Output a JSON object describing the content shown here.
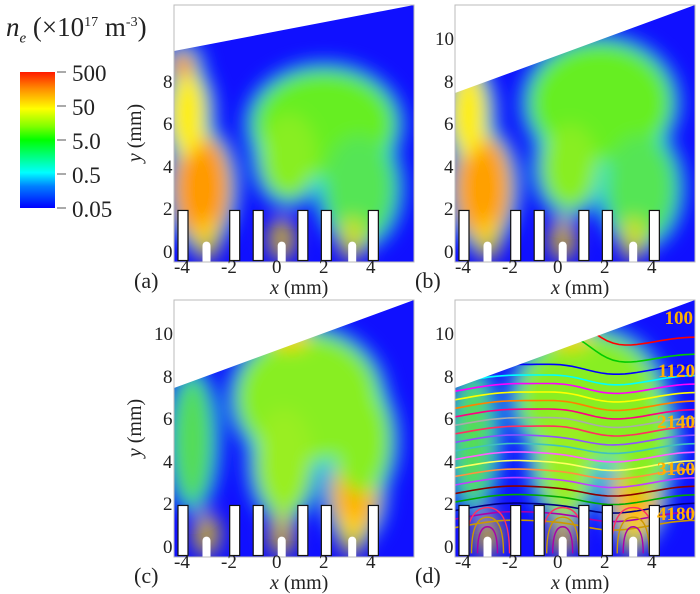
{
  "chart_data": {
    "type": "heatmap",
    "title": {
      "symbol": "n",
      "sub": "e",
      "prefix": "(×10",
      "exp": "17",
      "unit": " m",
      "unit_exp": "-3",
      ")": ")"
    },
    "colorbar": {
      "scale": "log",
      "ticks": [
        "500",
        "50",
        "5.0",
        "0.5",
        "0.05"
      ],
      "range": [
        0.05,
        500
      ]
    },
    "xlabel": {
      "var": "x",
      "unit": " (mm)"
    },
    "ylabel": {
      "var": "y",
      "unit": " (mm)"
    },
    "x_ticks": [
      "-4",
      "-2",
      "0",
      "2",
      "4"
    ],
    "electrodes_x_mm": [
      -4.0,
      -1.8,
      -0.8,
      1.1,
      2.1,
      4.1
    ],
    "nozzles_x_mm": [
      -3.0,
      0.2,
      3.2
    ],
    "panels": [
      {
        "label": "(a)",
        "y_ticks": [
          "0",
          "2",
          "4",
          "6",
          "8"
        ],
        "show_ylabel": true,
        "blobs": [
          {
            "x": -3.2,
            "y": 3,
            "rx": 1.2,
            "ry": 2.5,
            "c": "#ff9a00"
          },
          {
            "x": -3.8,
            "y": 6.5,
            "rx": 0.8,
            "ry": 2,
            "c": "#ffee00"
          },
          {
            "x": -4,
            "y": 8.8,
            "rx": 0.5,
            "ry": 0.6,
            "c": "#ff9000"
          },
          {
            "x": 2,
            "y": 6,
            "rx": 3,
            "ry": 2.5,
            "c": "#66ee22"
          },
          {
            "x": 0.5,
            "y": 4.5,
            "rx": 1.2,
            "ry": 2,
            "c": "#88ee22"
          },
          {
            "x": 3.5,
            "y": 3,
            "rx": 1.5,
            "ry": 2.5,
            "c": "#55e555"
          }
        ]
      },
      {
        "label": "(b)",
        "y_ticks": [
          "0",
          "2",
          "4",
          "6",
          "8",
          "10"
        ],
        "show_ylabel": false,
        "blobs": [
          {
            "x": -3.2,
            "y": 3,
            "rx": 1.2,
            "ry": 2.5,
            "c": "#ffa000"
          },
          {
            "x": -3.8,
            "y": 6.5,
            "rx": 0.8,
            "ry": 2,
            "c": "#ffee00"
          },
          {
            "x": -4,
            "y": 8.8,
            "rx": 0.5,
            "ry": 0.6,
            "c": "#ff9000"
          },
          {
            "x": 1.8,
            "y": 7,
            "rx": 3,
            "ry": 2.8,
            "c": "#66ee22"
          },
          {
            "x": 0.5,
            "y": 4,
            "rx": 1.2,
            "ry": 2,
            "c": "#88ee22"
          },
          {
            "x": 3.5,
            "y": 3,
            "rx": 1.5,
            "ry": 2.5,
            "c": "#55e555"
          }
        ]
      },
      {
        "label": "(c)",
        "y_ticks": [
          "0",
          "2",
          "4",
          "6",
          "8",
          "10"
        ],
        "show_ylabel": true,
        "blobs": [
          {
            "x": -3.6,
            "y": 5,
            "rx": 0.8,
            "ry": 3,
            "c": "#55dd55"
          },
          {
            "x": 1.3,
            "y": 7,
            "rx": 3,
            "ry": 3,
            "c": "#88ee22"
          },
          {
            "x": 0.5,
            "y": 9.8,
            "rx": 0.9,
            "ry": 0.5,
            "c": "#ffcc00"
          },
          {
            "x": 0.3,
            "y": 4,
            "rx": 1.2,
            "ry": 2.5,
            "c": "#99ee22"
          },
          {
            "x": 3.3,
            "y": 2.5,
            "rx": 1,
            "ry": 2,
            "c": "#ffb000"
          },
          {
            "x": 3.6,
            "y": 5,
            "rx": 1.2,
            "ry": 2.5,
            "c": "#88ee22"
          }
        ]
      },
      {
        "label": "(d)",
        "y_ticks": [
          "0",
          "2",
          "4",
          "6",
          "8",
          "10"
        ],
        "show_ylabel": false,
        "blobs": [
          {
            "x": -3.6,
            "y": 5,
            "rx": 0.8,
            "ry": 3,
            "c": "#55dd55"
          },
          {
            "x": 1.3,
            "y": 7,
            "rx": 3,
            "ry": 3,
            "c": "#88ee22"
          },
          {
            "x": 0.5,
            "y": 9.8,
            "rx": 0.9,
            "ry": 0.5,
            "c": "#ffcc00"
          },
          {
            "x": 0.3,
            "y": 4,
            "rx": 1.2,
            "ry": 2.5,
            "c": "#99ee22"
          },
          {
            "x": 3.3,
            "y": 2.5,
            "rx": 1,
            "ry": 2,
            "c": "#ffb000"
          },
          {
            "x": 3.6,
            "y": 5,
            "rx": 1.2,
            "ry": 2.5,
            "c": "#88ee22"
          }
        ],
        "contour_labels": [
          "100",
          "1120",
          "2140",
          "3160",
          "4180"
        ],
        "contour_levels_y_mm": [
          9.6,
          8.8,
          8.3,
          7.8,
          7.4,
          7.0,
          6.6,
          6.2,
          5.8,
          5.4,
          5.0,
          4.6,
          4.2,
          3.8,
          3.4,
          3.0,
          2.6,
          2.2,
          1.8,
          1.4,
          1.0
        ],
        "contour_colors": [
          "#ff0000",
          "#00cc00",
          "#0000ff",
          "#00ffff",
          "#ff00ff",
          "#ffff00",
          "#ff8000",
          "#ff0080",
          "#aaaaaa",
          "#ff3060",
          "#9050ff",
          "#40c0c0",
          "#ff60ff",
          "#ffff60",
          "#ff9040",
          "#c040ff",
          "#8b0000",
          "#00aa00",
          "#000080",
          "#aa00aa",
          "#cc9900"
        ]
      }
    ]
  }
}
